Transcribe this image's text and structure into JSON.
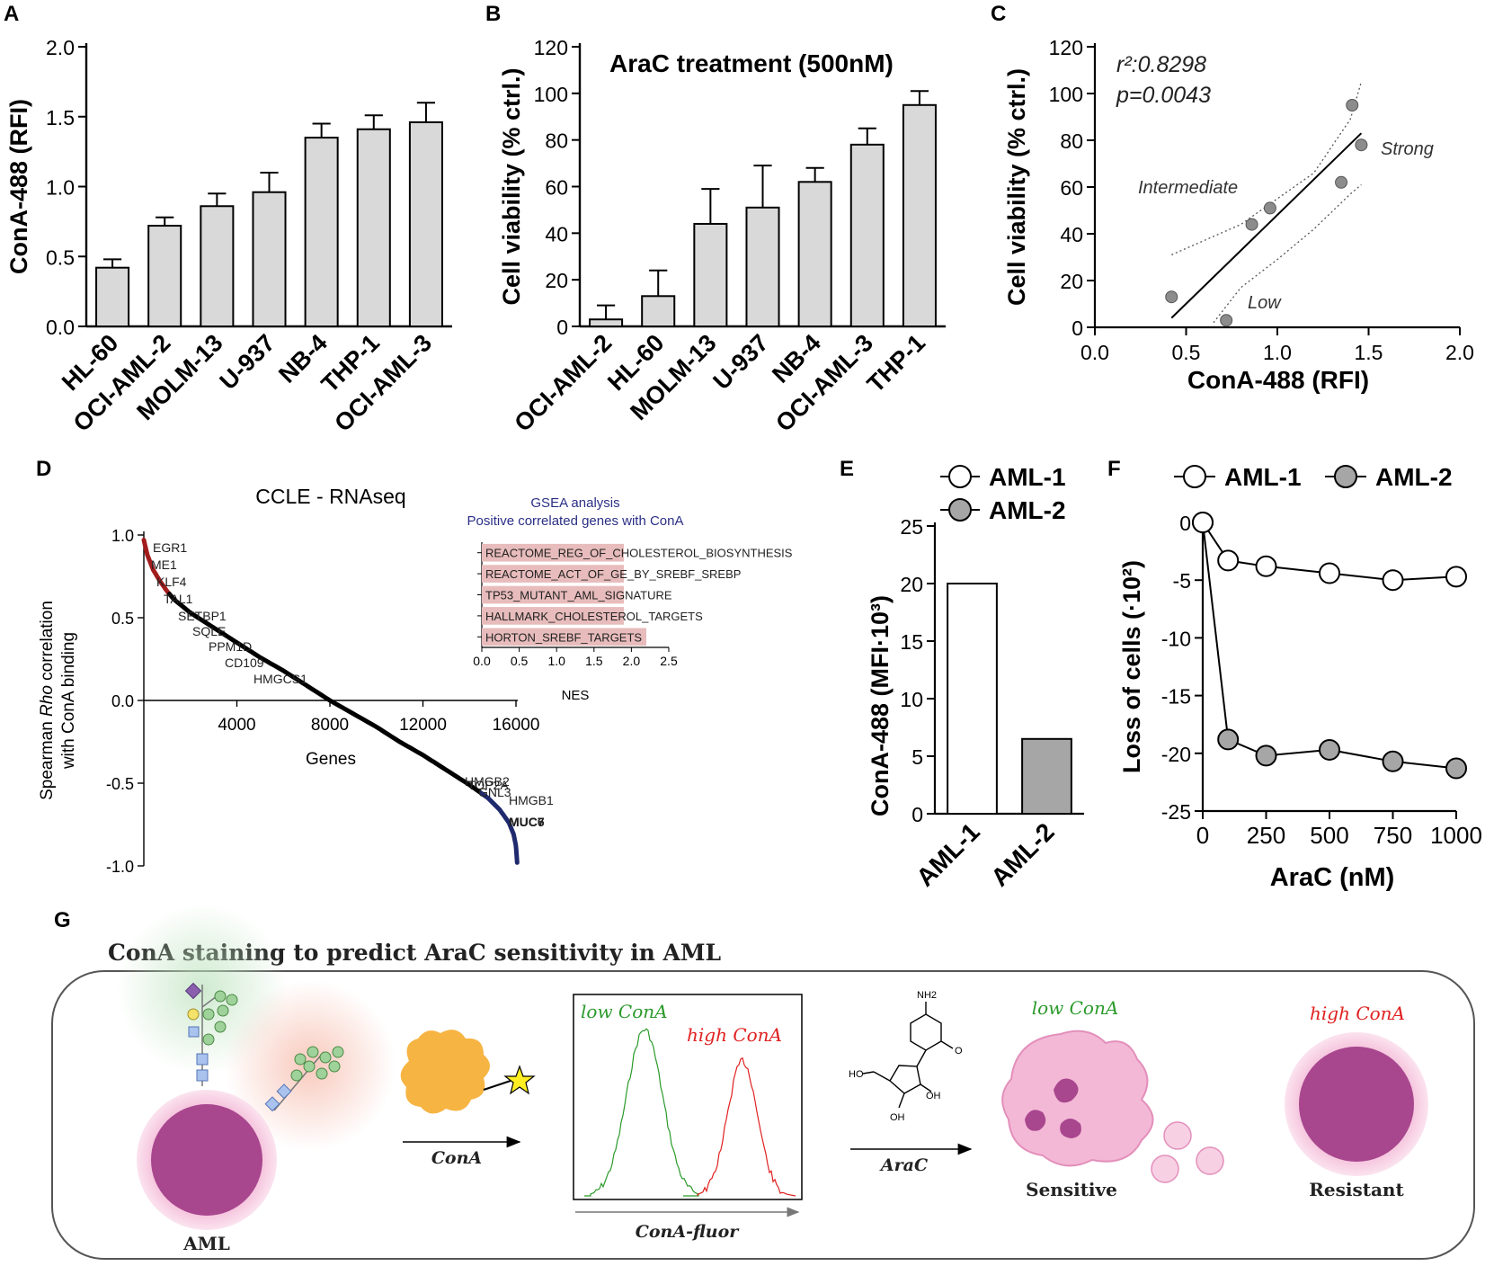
{
  "panels": {
    "A": "A",
    "B": "B",
    "C": "C",
    "D": "D",
    "E": "E",
    "F": "F",
    "G": "G"
  },
  "chart_data": [
    {
      "id": "A",
      "type": "bar",
      "categories": [
        "HL-60",
        "OCI-AML-2",
        "MOLM-13",
        "U-937",
        "NB-4",
        "THP-1",
        "OCI-AML-3"
      ],
      "values": [
        0.42,
        0.72,
        0.86,
        0.96,
        1.35,
        1.41,
        1.46
      ],
      "errors": [
        0.06,
        0.06,
        0.09,
        0.14,
        0.1,
        0.1,
        0.14
      ],
      "ylabel": "ConA-488 (RFI)",
      "ylim": [
        0,
        2.0
      ],
      "yticks": [
        "0.0",
        "0.5",
        "1.0",
        "1.5",
        "2.0"
      ],
      "ytick_values": [
        0,
        0.5,
        1.0,
        1.5,
        2.0
      ]
    },
    {
      "id": "B",
      "type": "bar",
      "title": "AraC treatment (500nM)",
      "categories": [
        "OCI-AML-2",
        "HL-60",
        "MOLM-13",
        "U-937",
        "NB-4",
        "OCI-AML-3",
        "THP-1"
      ],
      "values": [
        3,
        13,
        44,
        51,
        62,
        78,
        95
      ],
      "errors": [
        6,
        11,
        15,
        18,
        6,
        7,
        6
      ],
      "ylabel": "Cell viability (% ctrl.)",
      "ylim": [
        0,
        120
      ],
      "yticks": [
        "0",
        "20",
        "40",
        "60",
        "80",
        "100",
        "120"
      ],
      "ytick_values": [
        0,
        20,
        40,
        60,
        80,
        100,
        120
      ]
    },
    {
      "id": "C",
      "type": "scatter",
      "x": [
        0.42,
        0.72,
        0.86,
        0.96,
        1.35,
        1.41,
        1.46
      ],
      "y": [
        13,
        3,
        44,
        51,
        62,
        95,
        78
      ],
      "fit": {
        "x": [
          0.42,
          1.46
        ],
        "y": [
          4,
          83
        ]
      },
      "ci_upper": [
        [
          0.42,
          31
        ],
        [
          0.8,
          44
        ],
        [
          1.0,
          55
        ],
        [
          1.2,
          66
        ],
        [
          1.4,
          89
        ],
        [
          1.46,
          105
        ]
      ],
      "ci_lower": [
        [
          0.65,
          2
        ],
        [
          0.8,
          17
        ],
        [
          1.0,
          29
        ],
        [
          1.2,
          42
        ],
        [
          1.4,
          57
        ],
        [
          1.46,
          61
        ]
      ],
      "annotations": {
        "r2": "r²:0.8298",
        "p": "p=0.0043",
        "strong": "Strong",
        "intermediate": "Intermediate",
        "low": "Low"
      },
      "xlabel": "ConA-488 (RFI)",
      "ylabel": "Cell viability (% ctrl.)",
      "xlim": [
        0,
        2.0
      ],
      "ylim": [
        0,
        120
      ],
      "xticks": [
        "0.0",
        "0.5",
        "1.0",
        "1.5",
        "2.0"
      ],
      "xtick_values": [
        0,
        0.5,
        1.0,
        1.5,
        2.0
      ],
      "yticks": [
        "0",
        "20",
        "40",
        "60",
        "80",
        "100",
        "120"
      ],
      "ytick_values": [
        0,
        20,
        40,
        60,
        80,
        100,
        120
      ]
    },
    {
      "id": "D",
      "type": "line",
      "title": "CCLE -  RNAseq",
      "xlabel": "Genes",
      "ylabel_parts": [
        "Spearman ",
        "Rho",
        " correlation"
      ],
      "ylabel2": "with ConA binding",
      "xlim": [
        0,
        16000
      ],
      "ylim": [
        -1.0,
        1.0
      ],
      "xticks": [
        "4000",
        "8000",
        "12000",
        "16000"
      ],
      "xtick_values": [
        4000,
        8000,
        12000,
        16000
      ],
      "yticks": [
        "1.0",
        "0.5",
        "0.0",
        "-0.5",
        "-1.0"
      ],
      "ytick_values": [
        1.0,
        0.5,
        0.0,
        -0.5,
        -1.0
      ],
      "curve": [
        [
          0,
          0.97
        ],
        [
          150,
          0.88
        ],
        [
          400,
          0.79
        ],
        [
          700,
          0.72
        ],
        [
          1000,
          0.66
        ],
        [
          1300,
          0.61
        ],
        [
          2000,
          0.53
        ],
        [
          3000,
          0.44
        ],
        [
          4000,
          0.35
        ],
        [
          5000,
          0.26
        ],
        [
          6000,
          0.18
        ],
        [
          7000,
          0.09
        ],
        [
          8000,
          0.0
        ],
        [
          9000,
          -0.08
        ],
        [
          10000,
          -0.16
        ],
        [
          11000,
          -0.25
        ],
        [
          12000,
          -0.33
        ],
        [
          13000,
          -0.42
        ],
        [
          14000,
          -0.51
        ],
        [
          14800,
          -0.59
        ],
        [
          15300,
          -0.66
        ],
        [
          15700,
          -0.74
        ],
        [
          15900,
          -0.81
        ],
        [
          16000,
          -0.88
        ],
        [
          16050,
          -0.98
        ]
      ],
      "red_end_x": 1100,
      "blue_start_x": 14500,
      "top_genes": [
        "EGR1",
        "ME1",
        "KLF4",
        "TAL1",
        "SETBP1",
        "SQLE",
        "PPM1D",
        "CD109",
        "HMGCS1"
      ],
      "bottom_genes": [
        "HMGB2",
        "TOP2A",
        "GNL3",
        "HMGB1",
        "MUC7",
        "MUC6"
      ],
      "gsea": {
        "title1": "GSEA analysis",
        "title2": "Positive correlated genes with ConA",
        "terms": [
          "REACTOME_REG_OF_CHOLESTEROL_BIOSYNTHESIS",
          "REACTOME_ACT_OF_GE_BY_SREBF_SREBP",
          "TP53_MUTANT_AML_SIGNATURE",
          "HALLMARK_CHOLESTEROL_TARGETS",
          "HORTON_SREBF_TARGETS"
        ],
        "nes": [
          1.9,
          1.9,
          1.9,
          1.9,
          2.2
        ],
        "xlabel": "NES",
        "xlim": [
          0,
          2.5
        ],
        "xticks": [
          "0.0",
          "0.5",
          "1.0",
          "1.5",
          "2.0",
          "2.5"
        ],
        "xtick_values": [
          0,
          0.5,
          1.0,
          1.5,
          2.0,
          2.5
        ],
        "bar_color": "#e8bcbc"
      },
      "colors": {
        "top": "#a31d1d",
        "bottom": "#1f2a6e",
        "gsea_title": "#2b2f86"
      }
    },
    {
      "id": "E",
      "type": "bar",
      "categories": [
        "AML-1",
        "AML-2"
      ],
      "values": [
        20,
        6.5
      ],
      "ylabel": "ConA-488 (MFI·10³)",
      "ylim": [
        0,
        25
      ],
      "yticks": [
        "0",
        "5",
        "10",
        "15",
        "20",
        "25"
      ],
      "ytick_values": [
        0,
        5,
        10,
        15,
        20,
        25
      ],
      "legend": [
        "AML-1",
        "AML-2"
      ],
      "colors": [
        "#ffffff",
        "#a6a6a6"
      ]
    },
    {
      "id": "F",
      "type": "line",
      "x": [
        0,
        100,
        250,
        500,
        750,
        1000
      ],
      "series": [
        {
          "name": "AML-1",
          "values": [
            0,
            -3.3,
            -3.8,
            -4.4,
            -5.0,
            -4.7
          ],
          "color": "#ffffff"
        },
        {
          "name": "AML-2",
          "values": [
            0,
            -18.8,
            -20.2,
            -19.7,
            -20.7,
            -21.3
          ],
          "color": "#a6a6a6"
        }
      ],
      "xlabel": "AraC (nM)",
      "ylabel": "Loss of cells (·10²)",
      "xlim": [
        0,
        1000
      ],
      "ylim": [
        -25,
        0
      ],
      "xticks": [
        "0",
        "250",
        "500",
        "750",
        "1000"
      ],
      "xtick_values": [
        0,
        250,
        500,
        750,
        1000
      ],
      "yticks": [
        "0",
        "-5",
        "-10",
        "-15",
        "-20",
        "-25"
      ],
      "ytick_values": [
        0,
        -5,
        -10,
        -15,
        -20,
        -25
      ]
    }
  ],
  "schematic": {
    "title": "ConA staining to predict AraC sensitivity in AML",
    "aml_label": "AML",
    "conA_arrow_label": "ConA",
    "low_conA": "low ConA",
    "high_conA": "high ConA",
    "hist_xlabel": "ConA-fluor",
    "arac_arrow_label": "AraC",
    "nh2": "NH2",
    "ho": "HO",
    "o": "O",
    "oh": "OH",
    "sensitive_label": "Sensitive",
    "resistant_label": "Resistant",
    "low_conA_2": "low ConA",
    "high_conA_2": "high ConA",
    "colors": {
      "green": "#2a9a2a",
      "red": "#e02020",
      "cell": "#a8468e",
      "cell_halo": "#f3b8d6",
      "conA": "#f6b442"
    }
  }
}
